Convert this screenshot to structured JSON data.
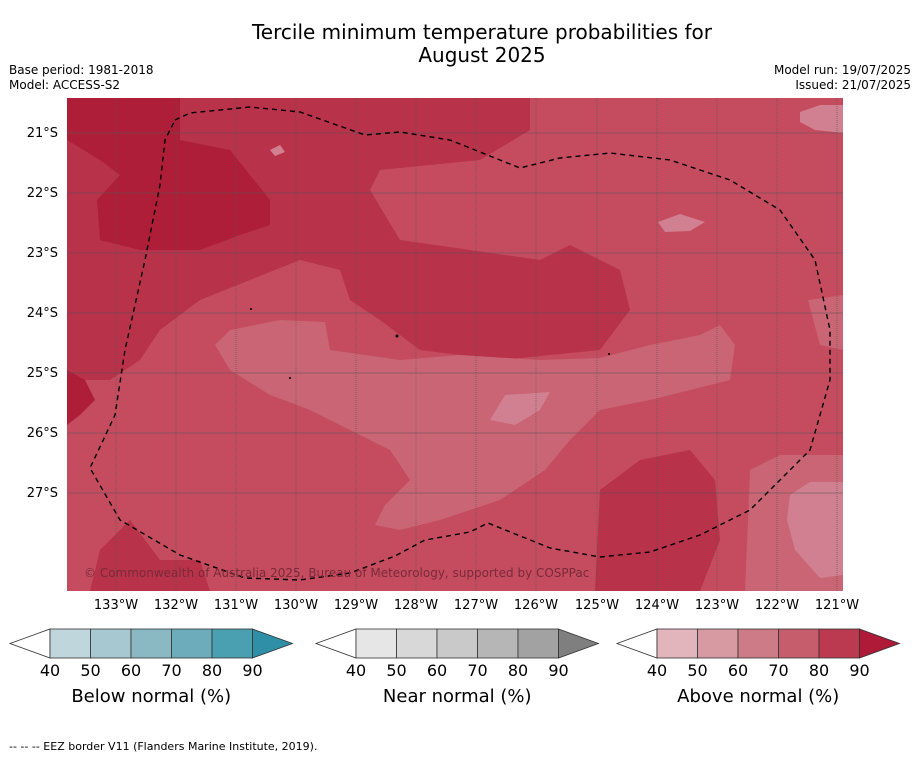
{
  "title_line1": "Tercile minimum temperature probabilities for",
  "title_line2": "August 2025",
  "base_period": "Base period: 1981-2018",
  "model": "Model: ACCESS-S2",
  "model_run": "Model run: 19/07/2025",
  "issued": "Issued: 21/07/2025",
  "copyright": "© Commonwealth of Australia 2025, Bureau of Meteorology, supported by COSPPac",
  "latitudes": [
    "21°S",
    "22°S",
    "23°S",
    "24°S",
    "25°S",
    "26°S",
    "27°S"
  ],
  "longitudes": [
    "133°W",
    "132°W",
    "131°W",
    "130°W",
    "129°W",
    "128°W",
    "127°W",
    "126°W",
    "125°W",
    "124°W",
    "123°W",
    "122°W",
    "121°W"
  ],
  "colorbars": [
    {
      "label": "Below normal (%)",
      "ticks": [
        "40",
        "50",
        "60",
        "70",
        "80",
        "90"
      ],
      "colors": [
        "#ffffff",
        "#bfd6dc",
        "#a7c8d0",
        "#8ab9c4",
        "#6dacba",
        "#4aa0b0",
        "#2e8fa6"
      ]
    },
    {
      "label": "Near normal (%)",
      "ticks": [
        "40",
        "50",
        "60",
        "70",
        "80",
        "90"
      ],
      "colors": [
        "#ffffff",
        "#e6e6e6",
        "#d8d8d8",
        "#c9c9c9",
        "#b6b6b6",
        "#a2a2a2",
        "#7f7f7f"
      ]
    },
    {
      "label": "Above normal (%)",
      "ticks": [
        "40",
        "50",
        "60",
        "70",
        "80",
        "90"
      ],
      "colors": [
        "#ffffff",
        "#e2b5bc",
        "#d79aa3",
        "#cc7b87",
        "#c55d6c",
        "#bb3a50",
        "#ae1a37"
      ]
    }
  ],
  "footer": "-- -- -- EEZ border V11 (Flanders Marine Institute, 2019).",
  "map_colors": {
    "base": "#c44c5e",
    "c70": "#c96574",
    "c60": "#d08090",
    "c80": "#b83249",
    "c90": "#ae1e38"
  }
}
